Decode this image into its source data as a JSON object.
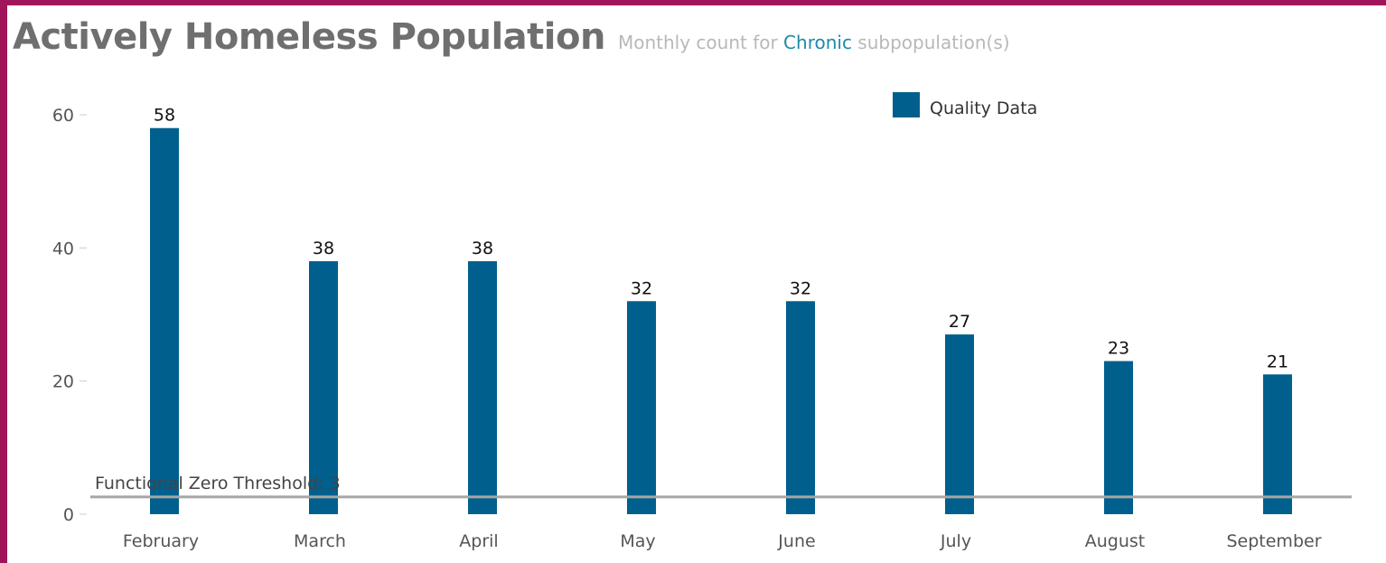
{
  "header": {
    "title": "Actively Homeless Population",
    "subtitle_prefix": "Monthly count for",
    "subtitle_highlight": "Chronic",
    "subtitle_suffix": "subpopulation(s)"
  },
  "colors": {
    "frame": "#a0155a",
    "bar": "#005f8c",
    "threshold_line": "#a6a6a6",
    "highlight_text": "#1e8aa6"
  },
  "chart_data": {
    "type": "bar",
    "categories": [
      "February",
      "March",
      "April",
      "May",
      "June",
      "July",
      "August",
      "September"
    ],
    "series": [
      {
        "name": "Quality Data",
        "values": [
          58,
          38,
          38,
          32,
          32,
          27,
          23,
          21
        ]
      }
    ],
    "yticks": [
      0,
      20,
      40,
      60
    ],
    "ylim": [
      0,
      60
    ],
    "data_labels": true,
    "legend": {
      "position": "top-right",
      "label": "Quality Data"
    },
    "threshold": {
      "value": 3,
      "label": "Functional Zero Threshold: 3"
    },
    "grid": false
  }
}
